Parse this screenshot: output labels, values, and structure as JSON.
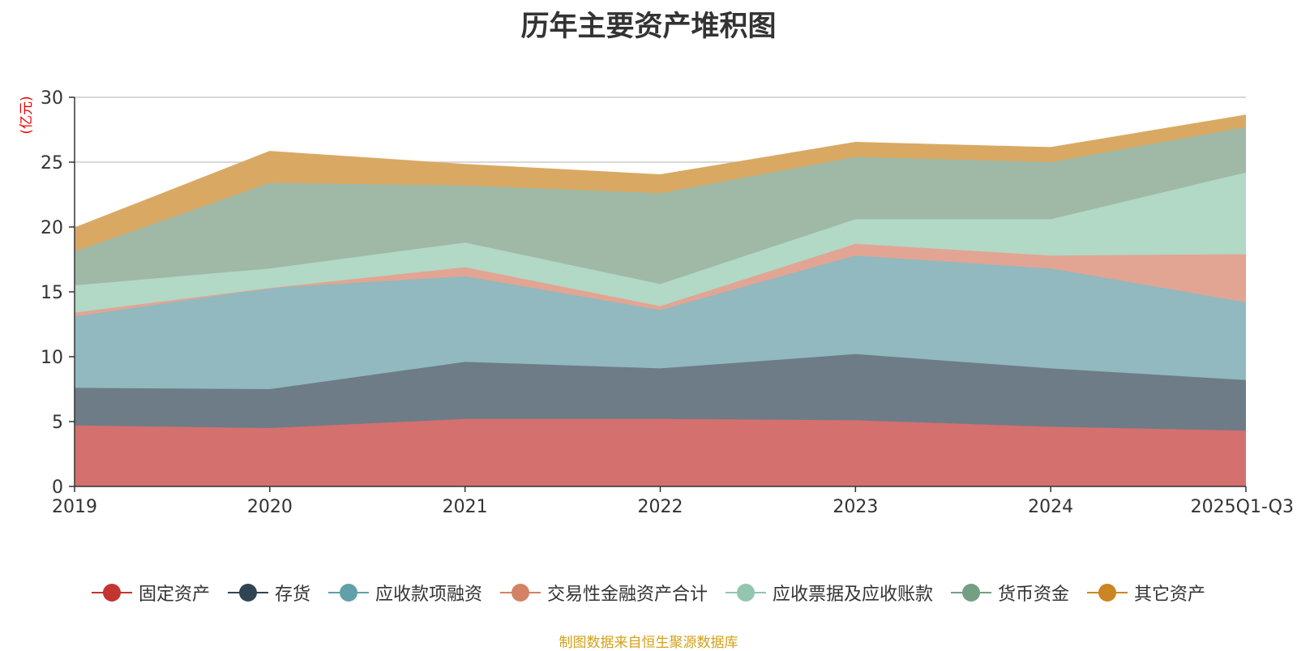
{
  "chart_data": {
    "type": "area",
    "stacked": true,
    "title": "历年主要资产堆积图",
    "ylabel": "(亿元)",
    "xlabel": "",
    "ylim": [
      0,
      30
    ],
    "yticks": [
      0,
      5,
      10,
      15,
      20,
      25,
      30
    ],
    "grid": true,
    "legend_position": "bottom",
    "categories": [
      "2019",
      "2020",
      "2021",
      "2022",
      "2023",
      "2024",
      "2025Q1-Q3"
    ],
    "series": [
      {
        "name": "固定资产",
        "color": "#c23531",
        "fill": "#d4706e",
        "values": [
          4.7,
          4.5,
          5.2,
          5.2,
          5.1,
          4.6,
          4.3
        ]
      },
      {
        "name": "存货",
        "color": "#2f4554",
        "fill": "#6e7c87",
        "values": [
          2.9,
          3.0,
          4.4,
          3.9,
          5.1,
          4.5,
          3.9
        ]
      },
      {
        "name": "应收款项融资",
        "color": "#61a0a8",
        "fill": "#91b9bf",
        "values": [
          5.5,
          7.8,
          6.6,
          4.5,
          7.6,
          7.7,
          6.0
        ]
      },
      {
        "name": "交易性金融资产合计",
        "color": "#d48265",
        "fill": "#e2a593",
        "values": [
          0.3,
          0.0,
          0.7,
          0.3,
          0.9,
          1.0,
          3.7
        ]
      },
      {
        "name": "应收票据及应收账款",
        "color": "#91c7ae",
        "fill": "#b2d8c6",
        "values": [
          2.1,
          1.5,
          1.9,
          1.7,
          1.9,
          2.8,
          6.3
        ]
      },
      {
        "name": "货币资金",
        "color": "#749f83",
        "fill": "#9fb9a6",
        "values": [
          2.6,
          6.6,
          4.4,
          7.0,
          4.8,
          4.4,
          3.5
        ]
      },
      {
        "name": "其它资产",
        "color": "#ca8622",
        "fill": "#d9a964",
        "values": [
          1.8,
          2.4,
          1.6,
          1.4,
          1.1,
          1.1,
          0.9
        ]
      }
    ]
  },
  "source_note": "制图数据来自恒生聚源数据库"
}
